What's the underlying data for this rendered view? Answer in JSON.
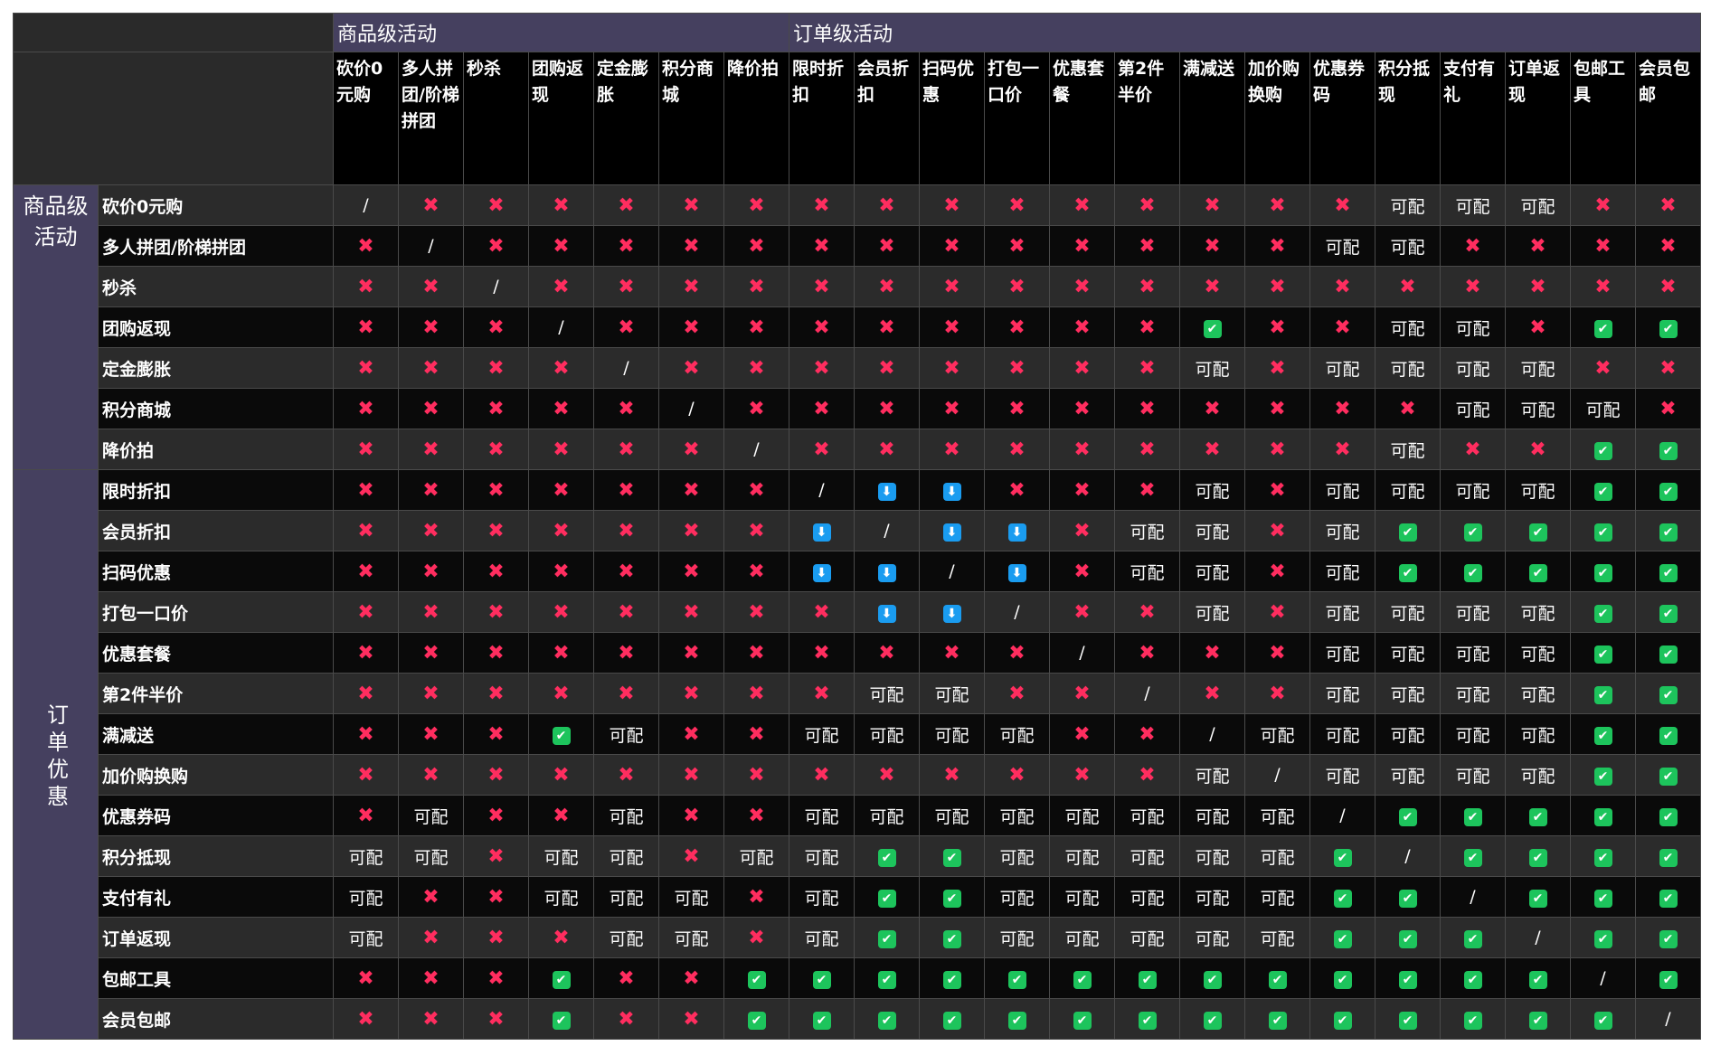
{
  "group_columns": [
    {
      "label": "商品级活动",
      "span": 7
    },
    {
      "label": "订单级活动",
      "span": 14
    }
  ],
  "group_rows": [
    {
      "label": "商品级活动",
      "span": 7
    },
    {
      "label": "订单优惠",
      "span": 14
    }
  ],
  "columns": [
    "砍价0元购",
    "多人拼团/阶梯拼团",
    "秒杀",
    "团购返现",
    "定金膨胀",
    "积分商城",
    "降价拍",
    "限时折扣",
    "会员折扣",
    "扫码优惠",
    "打包一口价",
    "优惠套餐",
    "第2件半价",
    "满减送",
    "加价购换购",
    "优惠券码",
    "积分抵现",
    "支付有礼",
    "订单返现",
    "包邮工具",
    "会员包邮"
  ],
  "symbol_styles": {
    "✖": {
      "color": "#ff2d5f"
    },
    "✔": {
      "background": "#1dc45c",
      "color": "#ffffff"
    },
    "⬇": {
      "background": "#1a9cf0",
      "color": "#ffffff"
    }
  },
  "rows": [
    {
      "label": "砍价0元购",
      "cells": [
        "/",
        "✖",
        "✖",
        "✖",
        "✖",
        "✖",
        "✖",
        "✖",
        "✖",
        "✖",
        "✖",
        "✖",
        "✖",
        "✖",
        "✖",
        "✖",
        "可配",
        "可配",
        "可配",
        "✖",
        "✖"
      ]
    },
    {
      "label": "多人拼团/阶梯拼团",
      "cells": [
        "✖",
        "/",
        "✖",
        "✖",
        "✖",
        "✖",
        "✖",
        "✖",
        "✖",
        "✖",
        "✖",
        "✖",
        "✖",
        "✖",
        "✖",
        "可配",
        "可配",
        "✖",
        "✖",
        "✖",
        "✖"
      ]
    },
    {
      "label": "秒杀",
      "cells": [
        "✖",
        "✖",
        "/",
        "✖",
        "✖",
        "✖",
        "✖",
        "✖",
        "✖",
        "✖",
        "✖",
        "✖",
        "✖",
        "✖",
        "✖",
        "✖",
        "✖",
        "✖",
        "✖",
        "✖",
        "✖"
      ]
    },
    {
      "label": "团购返现",
      "cells": [
        "✖",
        "✖",
        "✖",
        "/",
        "✖",
        "✖",
        "✖",
        "✖",
        "✖",
        "✖",
        "✖",
        "✖",
        "✖",
        "✔",
        "✖",
        "✖",
        "可配",
        "可配",
        "✖",
        "✔",
        "✔"
      ]
    },
    {
      "label": "定金膨胀",
      "cells": [
        "✖",
        "✖",
        "✖",
        "✖",
        "/",
        "✖",
        "✖",
        "✖",
        "✖",
        "✖",
        "✖",
        "✖",
        "✖",
        "可配",
        "✖",
        "可配",
        "可配",
        "可配",
        "可配",
        "✖",
        "✖"
      ]
    },
    {
      "label": "积分商城",
      "cells": [
        "✖",
        "✖",
        "✖",
        "✖",
        "✖",
        "/",
        "✖",
        "✖",
        "✖",
        "✖",
        "✖",
        "✖",
        "✖",
        "✖",
        "✖",
        "✖",
        "✖",
        "可配",
        "可配",
        "可配",
        "✖"
      ]
    },
    {
      "label": "降价拍",
      "cells": [
        "✖",
        "✖",
        "✖",
        "✖",
        "✖",
        "✖",
        "/",
        "✖",
        "✖",
        "✖",
        "✖",
        "✖",
        "✖",
        "✖",
        "✖",
        "✖",
        "可配",
        "✖",
        "✖",
        "✔",
        "✔"
      ]
    },
    {
      "label": "限时折扣",
      "cells": [
        "✖",
        "✖",
        "✖",
        "✖",
        "✖",
        "✖",
        "✖",
        "/",
        "⬇",
        "⬇",
        "✖",
        "✖",
        "✖",
        "可配",
        "✖",
        "可配",
        "可配",
        "可配",
        "可配",
        "✔",
        "✔"
      ]
    },
    {
      "label": "会员折扣",
      "cells": [
        "✖",
        "✖",
        "✖",
        "✖",
        "✖",
        "✖",
        "✖",
        "⬇",
        "/",
        "⬇",
        "⬇",
        "✖",
        "可配",
        "可配",
        "✖",
        "可配",
        "✔",
        "✔",
        "✔",
        "✔",
        "✔"
      ]
    },
    {
      "label": "扫码优惠",
      "cells": [
        "✖",
        "✖",
        "✖",
        "✖",
        "✖",
        "✖",
        "✖",
        "⬇",
        "⬇",
        "/",
        "⬇",
        "✖",
        "可配",
        "可配",
        "✖",
        "可配",
        "✔",
        "✔",
        "✔",
        "✔",
        "✔"
      ]
    },
    {
      "label": "打包一口价",
      "cells": [
        "✖",
        "✖",
        "✖",
        "✖",
        "✖",
        "✖",
        "✖",
        "✖",
        "⬇",
        "⬇",
        "/",
        "✖",
        "✖",
        "可配",
        "✖",
        "可配",
        "可配",
        "可配",
        "可配",
        "✔",
        "✔"
      ]
    },
    {
      "label": "优惠套餐",
      "cells": [
        "✖",
        "✖",
        "✖",
        "✖",
        "✖",
        "✖",
        "✖",
        "✖",
        "✖",
        "✖",
        "✖",
        "/",
        "✖",
        "✖",
        "✖",
        "可配",
        "可配",
        "可配",
        "可配",
        "✔",
        "✔"
      ]
    },
    {
      "label": "第2件半价",
      "cells": [
        "✖",
        "✖",
        "✖",
        "✖",
        "✖",
        "✖",
        "✖",
        "✖",
        "可配",
        "可配",
        "✖",
        "✖",
        "/",
        "✖",
        "✖",
        "可配",
        "可配",
        "可配",
        "可配",
        "✔",
        "✔"
      ]
    },
    {
      "label": "满减送",
      "cells": [
        "✖",
        "✖",
        "✖",
        "✔",
        "可配",
        "✖",
        "✖",
        "可配",
        "可配",
        "可配",
        "可配",
        "✖",
        "✖",
        "/",
        "可配",
        "可配",
        "可配",
        "可配",
        "可配",
        "✔",
        "✔"
      ]
    },
    {
      "label": "加价购换购",
      "cells": [
        "✖",
        "✖",
        "✖",
        "✖",
        "✖",
        "✖",
        "✖",
        "✖",
        "✖",
        "✖",
        "✖",
        "✖",
        "✖",
        "可配",
        "/",
        "可配",
        "可配",
        "可配",
        "可配",
        "✔",
        "✔"
      ]
    },
    {
      "label": "优惠券码",
      "cells": [
        "✖",
        "可配",
        "✖",
        "✖",
        "可配",
        "✖",
        "✖",
        "可配",
        "可配",
        "可配",
        "可配",
        "可配",
        "可配",
        "可配",
        "可配",
        "/",
        "✔",
        "✔",
        "✔",
        "✔",
        "✔"
      ]
    },
    {
      "label": "积分抵现",
      "cells": [
        "可配",
        "可配",
        "✖",
        "可配",
        "可配",
        "✖",
        "可配",
        "可配",
        "✔",
        "✔",
        "可配",
        "可配",
        "可配",
        "可配",
        "可配",
        "✔",
        "/",
        "✔",
        "✔",
        "✔",
        "✔"
      ]
    },
    {
      "label": "支付有礼",
      "cells": [
        "可配",
        "✖",
        "✖",
        "可配",
        "可配",
        "可配",
        "✖",
        "可配",
        "✔",
        "✔",
        "可配",
        "可配",
        "可配",
        "可配",
        "可配",
        "✔",
        "✔",
        "/",
        "✔",
        "✔",
        "✔"
      ]
    },
    {
      "label": "订单返现",
      "cells": [
        "可配",
        "✖",
        "✖",
        "✖",
        "可配",
        "可配",
        "✖",
        "可配",
        "✔",
        "✔",
        "可配",
        "可配",
        "可配",
        "可配",
        "可配",
        "✔",
        "✔",
        "✔",
        "/",
        "✔",
        "✔"
      ]
    },
    {
      "label": "包邮工具",
      "cells": [
        "✖",
        "✖",
        "✖",
        "✔",
        "✖",
        "✖",
        "✔",
        "✔",
        "✔",
        "✔",
        "✔",
        "✔",
        "✔",
        "✔",
        "✔",
        "✔",
        "✔",
        "✔",
        "✔",
        "/",
        "✔"
      ]
    },
    {
      "label": "会员包邮",
      "cells": [
        "✖",
        "✖",
        "✖",
        "✔",
        "✖",
        "✖",
        "✔",
        "✔",
        "✔",
        "✔",
        "✔",
        "✔",
        "✔",
        "✔",
        "✔",
        "✔",
        "✔",
        "✔",
        "✔",
        "✔",
        "/"
      ]
    }
  ]
}
